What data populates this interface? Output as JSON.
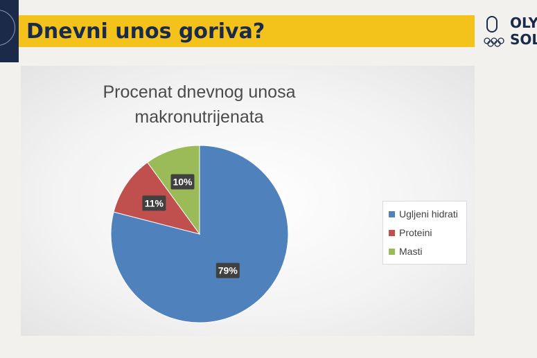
{
  "slide": {
    "title": "Dnevni unos goriva?",
    "brand_line1": "OLYM",
    "brand_line2": "SOLI"
  },
  "colors": {
    "banner": "#f3c21b",
    "navy": "#1c2a4a",
    "carbs": "#4f81bd",
    "protein": "#c0504d",
    "fat": "#9bbb59"
  },
  "chart_data": {
    "type": "pie",
    "title": "Procenat dnevnog unosa makronutrijenata",
    "title_lines": [
      "Procenat dnevnog unosa",
      "makronutrijenata"
    ],
    "categories": [
      "Ugljeni hidrati",
      "Proteini",
      "Masti"
    ],
    "values": [
      79,
      11,
      10
    ],
    "data_labels": [
      "79%",
      "11%",
      "10%"
    ],
    "colors": [
      "#4f81bd",
      "#c0504d",
      "#9bbb59"
    ],
    "legend": "right"
  }
}
